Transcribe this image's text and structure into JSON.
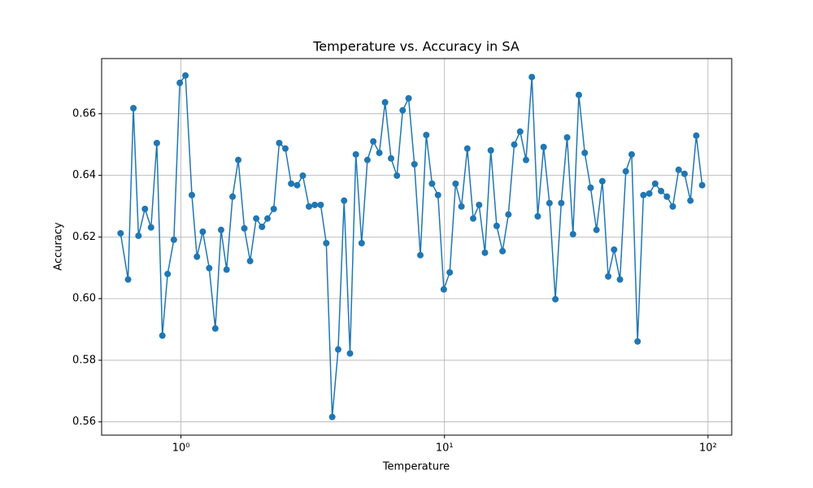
{
  "chart_data": {
    "type": "line",
    "title": "Temperature vs. Accuracy in SA",
    "x_label": "Temperature",
    "y_label": "Accuracy",
    "x_scale": "log",
    "grid": true,
    "x": [
      0.59,
      0.63,
      0.66,
      0.69,
      0.73,
      0.77,
      0.81,
      0.85,
      0.89,
      0.94,
      0.99,
      1.04,
      1.1,
      1.15,
      1.21,
      1.28,
      1.35,
      1.42,
      1.49,
      1.57,
      1.65,
      1.74,
      1.83,
      1.93,
      2.03,
      2.13,
      2.25,
      2.36,
      2.49,
      2.62,
      2.76,
      2.9,
      3.06,
      3.22,
      3.39,
      3.56,
      3.75,
      3.95,
      4.16,
      4.38,
      4.61,
      4.85,
      5.1,
      5.37,
      5.66,
      5.95,
      6.27,
      6.6,
      6.94,
      7.31,
      7.69,
      8.1,
      8.53,
      8.97,
      9.45,
      9.94,
      10.47,
      11.02,
      11.6,
      12.21,
      12.85,
      13.53,
      14.24,
      14.99,
      15.78,
      16.61,
      17.48,
      18.4,
      19.37,
      20.39,
      21.46,
      22.59,
      23.78,
      25.03,
      26.35,
      27.74,
      29.2,
      30.74,
      32.35,
      34.06,
      35.85,
      37.74,
      39.72,
      41.81,
      44.01,
      46.33,
      48.77,
      51.33,
      54.04,
      56.88,
      59.87,
      63.02,
      66.34,
      69.83,
      73.51,
      77.38,
      81.45,
      85.74,
      90.25,
      95
    ],
    "series": [
      {
        "name": "Accuracy",
        "color": "#1f77b4",
        "values": [
          0.6212,
          0.6062,
          0.6618,
          0.6204,
          0.6291,
          0.6231,
          0.6505,
          0.588,
          0.608,
          0.6191,
          0.67,
          0.6724,
          0.6336,
          0.6136,
          0.6217,
          0.6099,
          0.5903,
          0.6223,
          0.6094,
          0.6331,
          0.645,
          0.6228,
          0.6122,
          0.626,
          0.6233,
          0.626,
          0.6291,
          0.6505,
          0.6487,
          0.6373,
          0.6368,
          0.6399,
          0.6299,
          0.6304,
          0.6304,
          0.618,
          0.5616,
          0.5835,
          0.6318,
          0.5822,
          0.6468,
          0.618,
          0.645,
          0.651,
          0.6473,
          0.6637,
          0.6455,
          0.6399,
          0.6611,
          0.665,
          0.6436,
          0.6141,
          0.6531,
          0.6373,
          0.6336,
          0.603,
          0.6085,
          0.6373,
          0.6299,
          0.6487,
          0.626,
          0.6304,
          0.6149,
          0.6481,
          0.6236,
          0.6154,
          0.6273,
          0.65,
          0.6542,
          0.645,
          0.6719,
          0.6267,
          0.6492,
          0.631,
          0.5998,
          0.631,
          0.6523,
          0.6209,
          0.6661,
          0.6473,
          0.636,
          0.6223,
          0.6381,
          0.6072,
          0.6159,
          0.6062,
          0.6413,
          0.6468,
          0.5861,
          0.6336,
          0.6341,
          0.6373,
          0.6349,
          0.6331,
          0.6299,
          0.6418,
          0.6405,
          0.6318,
          0.6529,
          0.6368
        ]
      }
    ],
    "xlim": [
      0.5,
      123
    ],
    "ylim": [
      0.5557,
      0.6779
    ],
    "xticks": [
      {
        "value": 1,
        "label": "10⁰"
      },
      {
        "value": 10,
        "label": "10¹"
      },
      {
        "value": 100,
        "label": "10²"
      }
    ],
    "yticks": [
      0.56,
      0.58,
      {
        "value": 0.6,
        "label": "0.60"
      },
      0.62,
      0.64,
      0.66
    ]
  }
}
